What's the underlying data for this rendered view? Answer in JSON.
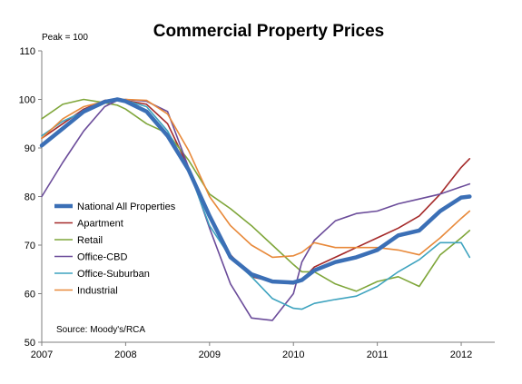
{
  "chart_data": {
    "type": "line",
    "title": "Commercial Property Prices",
    "ylabel": "Peak = 100",
    "source": "Source: Moody's/RCA",
    "ylim": [
      50,
      110
    ],
    "xlim": [
      2007,
      2012.4
    ],
    "yticks": [
      "50",
      "60",
      "70",
      "80",
      "90",
      "100",
      "110"
    ],
    "ytick_values": [
      50,
      60,
      70,
      80,
      90,
      100,
      110
    ],
    "xticks": [
      "2007",
      "2008",
      "2009",
      "2010",
      "2011",
      "2012"
    ],
    "xtick_values": [
      2007,
      2008,
      2009,
      2010,
      2011,
      2012
    ],
    "grid": false,
    "legend_position": "left",
    "series": [
      {
        "name": "National All Properties",
        "color": "#3b6fb6",
        "emphasis": true,
        "x": [
          2007.0,
          2007.25,
          2007.5,
          2007.75,
          2007.9,
          2008.0,
          2008.25,
          2008.5,
          2008.75,
          2009.0,
          2009.25,
          2009.5,
          2009.75,
          2010.0,
          2010.1,
          2010.25,
          2010.5,
          2010.75,
          2011.0,
          2011.25,
          2011.5,
          2011.75,
          2012.0,
          2012.1
        ],
        "y": [
          90.5,
          94.0,
          97.5,
          99.5,
          100.0,
          99.6,
          97.5,
          92.5,
          85.5,
          76.0,
          67.5,
          64.0,
          62.5,
          62.3,
          62.8,
          64.8,
          66.5,
          67.5,
          69.0,
          72.0,
          73.0,
          77.0,
          79.8,
          80.0
        ]
      },
      {
        "name": "Apartment",
        "color": "#a52a2a",
        "x": [
          2007.0,
          2007.25,
          2007.5,
          2007.75,
          2007.9,
          2008.0,
          2008.25,
          2008.5,
          2008.75,
          2009.0,
          2009.25,
          2009.5,
          2009.75,
          2010.0,
          2010.1,
          2010.25,
          2010.5,
          2010.75,
          2011.0,
          2011.25,
          2011.5,
          2011.75,
          2012.0,
          2012.1
        ],
        "y": [
          92.0,
          95.0,
          98.0,
          99.8,
          100.0,
          99.8,
          99.0,
          95.0,
          86.0,
          76.5,
          68.0,
          63.5,
          62.5,
          62.0,
          62.8,
          65.5,
          67.5,
          69.5,
          71.5,
          73.5,
          76.0,
          80.5,
          86.0,
          87.8
        ]
      },
      {
        "name": "Retail",
        "color": "#7fa63a",
        "x": [
          2007.0,
          2007.25,
          2007.5,
          2007.75,
          2007.9,
          2008.0,
          2008.25,
          2008.5,
          2008.75,
          2009.0,
          2009.25,
          2009.5,
          2009.75,
          2010.0,
          2010.1,
          2010.25,
          2010.5,
          2010.75,
          2011.0,
          2011.25,
          2011.5,
          2011.75,
          2012.0,
          2012.1
        ],
        "y": [
          96.0,
          99.0,
          100.0,
          99.3,
          98.8,
          98.0,
          95.0,
          93.0,
          87.5,
          80.5,
          77.5,
          74.0,
          70.0,
          66.0,
          64.5,
          64.5,
          62.0,
          60.5,
          62.5,
          63.5,
          61.5,
          68.0,
          71.5,
          73.0
        ]
      },
      {
        "name": "Office-CBD",
        "color": "#6b4c9a",
        "x": [
          2007.0,
          2007.25,
          2007.5,
          2007.75,
          2007.9,
          2008.0,
          2008.25,
          2008.5,
          2008.75,
          2009.0,
          2009.25,
          2009.5,
          2009.75,
          2010.0,
          2010.1,
          2010.25,
          2010.5,
          2010.75,
          2011.0,
          2011.25,
          2011.5,
          2011.75,
          2012.0,
          2012.1
        ],
        "y": [
          80.0,
          87.0,
          93.5,
          98.5,
          99.8,
          100.0,
          99.6,
          97.5,
          86.0,
          73.5,
          62.0,
          55.0,
          54.5,
          60.0,
          66.5,
          71.0,
          75.0,
          76.5,
          77.0,
          78.5,
          79.5,
          80.5,
          82.0,
          82.6
        ]
      },
      {
        "name": "Office-Suburban",
        "color": "#3ea3bf",
        "x": [
          2007.0,
          2007.25,
          2007.5,
          2007.75,
          2007.9,
          2008.0,
          2008.25,
          2008.5,
          2008.75,
          2009.0,
          2009.25,
          2009.5,
          2009.75,
          2010.0,
          2010.1,
          2010.25,
          2010.5,
          2010.75,
          2011.0,
          2011.25,
          2011.5,
          2011.75,
          2012.0,
          2012.1
        ],
        "y": [
          92.5,
          95.5,
          97.5,
          99.5,
          100.0,
          99.8,
          98.5,
          93.5,
          85.5,
          74.0,
          67.5,
          63.5,
          59.0,
          57.0,
          56.8,
          58.0,
          58.8,
          59.5,
          61.5,
          64.5,
          67.0,
          70.5,
          70.5,
          67.5
        ]
      },
      {
        "name": "Industrial",
        "color": "#e8893a",
        "x": [
          2007.0,
          2007.25,
          2007.5,
          2007.75,
          2007.9,
          2008.0,
          2008.25,
          2008.5,
          2008.75,
          2009.0,
          2009.25,
          2009.5,
          2009.75,
          2010.0,
          2010.1,
          2010.25,
          2010.5,
          2010.75,
          2011.0,
          2011.25,
          2011.5,
          2011.75,
          2012.0,
          2012.1
        ],
        "y": [
          92.0,
          96.0,
          98.5,
          99.6,
          100.0,
          100.0,
          99.8,
          97.0,
          89.5,
          80.0,
          74.0,
          70.0,
          67.5,
          67.8,
          68.5,
          70.5,
          69.5,
          69.5,
          69.5,
          69.0,
          68.0,
          71.5,
          75.5,
          77.0
        ]
      }
    ]
  }
}
